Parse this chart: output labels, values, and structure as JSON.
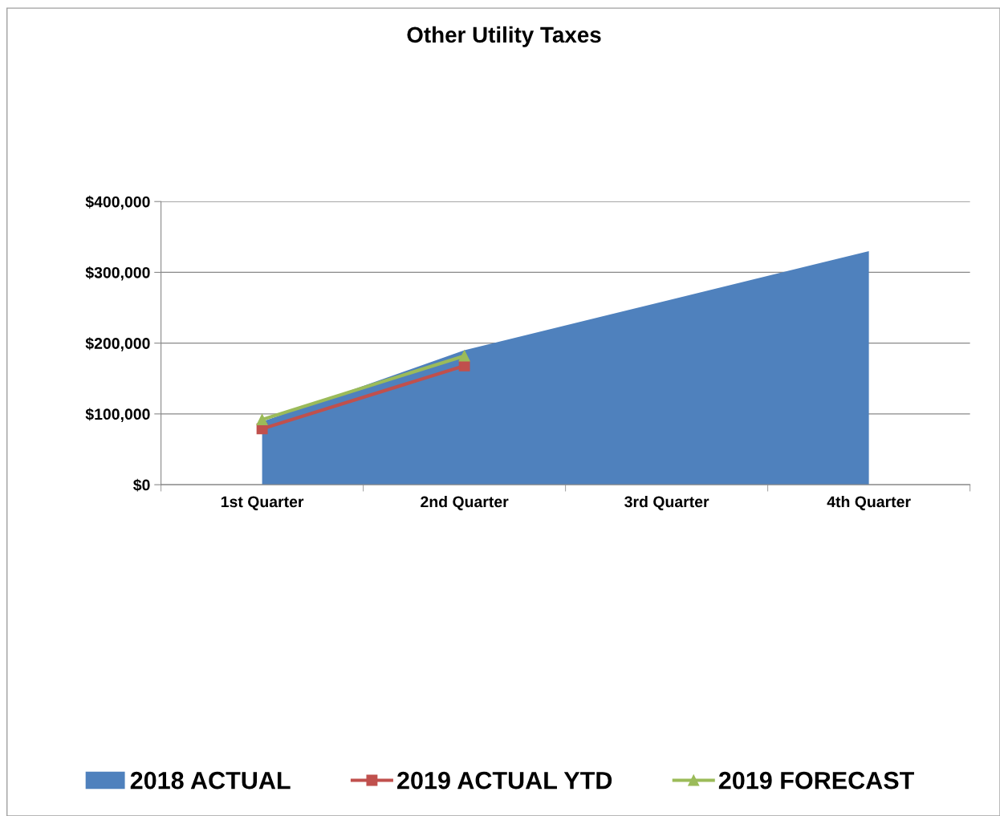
{
  "chart_data": {
    "type": "line",
    "title": "Other Utility Taxes",
    "categories": [
      "1st Quarter",
      "2nd Quarter",
      "3rd Quarter",
      "4th Quarter"
    ],
    "series": [
      {
        "name": "2018 ACTUAL",
        "type": "area",
        "color": "#4f81bd",
        "values": [
          89000,
          190000,
          260000,
          330000
        ]
      },
      {
        "name": "2019 ACTUAL YTD",
        "color": "#c0504d",
        "marker": "square",
        "values": [
          79000,
          168000,
          null,
          null
        ]
      },
      {
        "name": "2019 FORECAST",
        "color": "#9bbb59",
        "marker": "triangle",
        "values": [
          92000,
          182000,
          null,
          null
        ]
      }
    ],
    "ylim": [
      0,
      400000
    ],
    "yticks": [
      {
        "value": 0,
        "label": "$0"
      },
      {
        "value": 100000,
        "label": "$100,000"
      },
      {
        "value": 200000,
        "label": "$200,000"
      },
      {
        "value": 300000,
        "label": "$300,000"
      },
      {
        "value": 400000,
        "label": "$400,000"
      }
    ],
    "grid": "y",
    "legend": "bottom"
  }
}
